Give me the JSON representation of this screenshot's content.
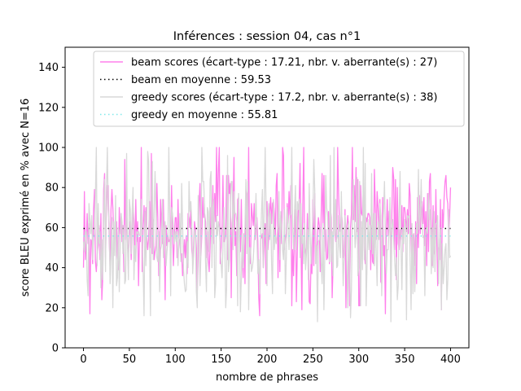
{
  "chart_data": {
    "type": "line",
    "title": "Inférences : session 04, cas n°1",
    "xlabel": "nombre de phrases",
    "ylabel": "score BLEU exprimé en % avec N=16",
    "xlim": [
      -20,
      420
    ],
    "ylim": [
      0,
      150
    ],
    "xticks": [
      0,
      50,
      100,
      150,
      200,
      250,
      300,
      350,
      400
    ],
    "yticks": [
      0,
      20,
      40,
      60,
      80,
      100,
      120,
      140
    ],
    "xtick_labels": [
      "0",
      "50",
      "100",
      "150",
      "200",
      "250",
      "300",
      "350",
      "400"
    ],
    "ytick_labels": [
      "0",
      "20",
      "40",
      "60",
      "80",
      "100",
      "120",
      "140"
    ],
    "grid": false,
    "legend_position": "top-right",
    "series": [
      {
        "name": "beam scores (écart-type : 17.21, nbr. v. aberrante(s) : 27)",
        "style": "line",
        "color": "#ff80ec",
        "x_range": [
          0,
          400
        ],
        "mean": 59.53,
        "std": 17.21,
        "min": 15,
        "max": 100,
        "n_points": 401
      },
      {
        "name": "beam en moyenne : 59.53",
        "style": "dotted",
        "color": "#000000",
        "x": [
          0,
          400
        ],
        "y": [
          59.53,
          59.53
        ]
      },
      {
        "name": "greedy scores (écart-type : 17.2, nbr. v. aberrante(s) : 38)",
        "style": "line",
        "color": "#d9d9d9",
        "x_range": [
          0,
          400
        ],
        "mean": 55.81,
        "std": 17.2,
        "min": 13,
        "max": 100,
        "n_points": 401
      },
      {
        "name": "greedy en moyenne : 55.81",
        "style": "dotted",
        "color": "#7fe8ea",
        "x": [
          0,
          400
        ],
        "y": [
          55.81,
          55.81
        ]
      }
    ]
  }
}
